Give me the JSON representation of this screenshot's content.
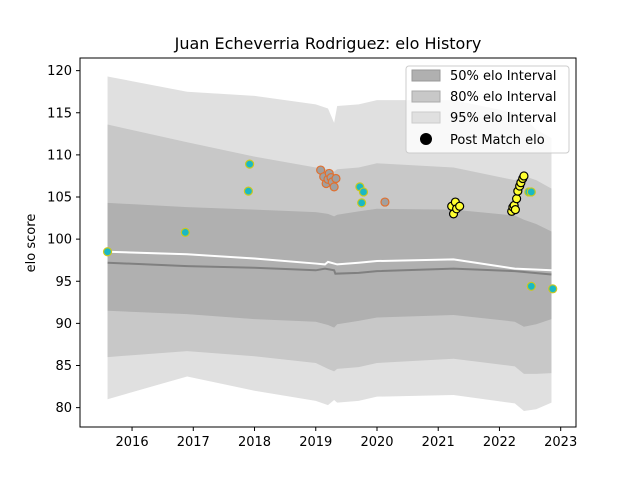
{
  "chart_data": {
    "type": "area",
    "title": "Juan Echeverria Rodriguez: elo History",
    "xlabel": "",
    "ylabel": "elo score",
    "xlim": [
      2015.15,
      2023.25
    ],
    "ylim": [
      77.7,
      121.5
    ],
    "x_ticks": [
      "2016",
      "2017",
      "2018",
      "2019",
      "2020",
      "2021",
      "2022",
      "2023"
    ],
    "y_ticks": [
      "80",
      "85",
      "90",
      "95",
      "100",
      "105",
      "110",
      "115",
      "120"
    ],
    "grid": false,
    "legend_position": "top-right",
    "legend": [
      {
        "label": "50% elo Interval",
        "kind": "band",
        "color": "#b0b0b0"
      },
      {
        "label": "80% elo Interval",
        "kind": "band",
        "color": "#c8c8c8"
      },
      {
        "label": "95% elo Interval",
        "kind": "band",
        "color": "#e0e0e0"
      },
      {
        "label": "Post Match elo",
        "kind": "marker",
        "color": "#000000"
      }
    ],
    "bands": {
      "x": [
        2015.6,
        2016.9,
        2018.0,
        2019.0,
        2019.2,
        2019.3,
        2019.35,
        2019.7,
        2020.0,
        2021.25,
        2022.25,
        2022.4,
        2022.6,
        2022.85
      ],
      "p95_upper": [
        119.3,
        117.5,
        117.0,
        116.0,
        115.5,
        113.8,
        115.8,
        116.0,
        116.5,
        116.5,
        115.0,
        114.5,
        113.0,
        112.0
      ],
      "p80_upper": [
        113.6,
        111.5,
        109.8,
        108.5,
        108.3,
        108.0,
        108.3,
        108.5,
        109.0,
        108.5,
        107.0,
        107.5,
        107.0,
        106.0
      ],
      "p50_upper": [
        104.3,
        103.8,
        103.5,
        103.2,
        103.0,
        102.7,
        102.9,
        103.3,
        103.6,
        103.5,
        102.8,
        102.3,
        101.8,
        100.9
      ],
      "p50_lower": [
        91.5,
        91.1,
        90.5,
        90.2,
        89.8,
        89.5,
        89.9,
        90.3,
        90.7,
        91.0,
        90.2,
        89.6,
        89.9,
        90.5
      ],
      "p80_lower": [
        86.0,
        86.7,
        86.1,
        85.3,
        84.6,
        84.3,
        84.6,
        84.8,
        85.3,
        85.8,
        84.9,
        84.0,
        84.0,
        84.1
      ],
      "p95_lower": [
        81.0,
        83.7,
        82.0,
        80.8,
        80.3,
        80.9,
        80.6,
        80.8,
        81.3,
        81.5,
        80.5,
        79.6,
        79.8,
        80.6
      ]
    },
    "series": [
      {
        "kind": "line",
        "color": "#ffffff",
        "x": [
          2015.6,
          2016.9,
          2018.0,
          2019.0,
          2019.15,
          2019.2,
          2019.3,
          2019.35,
          2019.7,
          2020.0,
          2021.25,
          2022.25,
          2022.85
        ],
        "y": [
          98.5,
          98.2,
          97.7,
          97.1,
          97.0,
          97.3,
          97.1,
          97.0,
          97.2,
          97.4,
          97.6,
          96.5,
          96.3
        ]
      },
      {
        "kind": "line",
        "color": "#808080",
        "x": [
          2015.6,
          2016.9,
          2018.0,
          2019.0,
          2019.15,
          2019.3,
          2019.32,
          2019.7,
          2020.0,
          2021.25,
          2022.25,
          2022.85
        ],
        "y": [
          97.2,
          96.8,
          96.6,
          96.3,
          96.5,
          96.3,
          95.9,
          96.0,
          96.2,
          96.5,
          96.2,
          95.8
        ]
      },
      {
        "kind": "scatter",
        "name": "",
        "fill": "#1ab8c4",
        "edge": "#c8c820",
        "points": [
          [
            2015.6,
            98.5
          ],
          [
            2016.87,
            100.8
          ],
          [
            2017.9,
            105.7
          ],
          [
            2017.92,
            108.9
          ],
          [
            2019.72,
            106.2
          ],
          [
            2019.75,
            104.3
          ],
          [
            2019.78,
            105.6
          ],
          [
            2022.48,
            105.6
          ],
          [
            2022.52,
            105.6
          ],
          [
            2022.52,
            94.4
          ],
          [
            2022.87,
            94.1
          ]
        ]
      },
      {
        "kind": "scatter",
        "name": "",
        "fill": "#a0a0a0",
        "edge": "#e07030",
        "points": [
          [
            2019.08,
            108.2
          ],
          [
            2019.13,
            107.4
          ],
          [
            2019.17,
            106.6
          ],
          [
            2019.2,
            107.1
          ],
          [
            2019.22,
            107.8
          ],
          [
            2019.25,
            107.3
          ],
          [
            2019.27,
            106.8
          ],
          [
            2019.3,
            106.2
          ],
          [
            2019.33,
            107.2
          ],
          [
            2020.13,
            104.4
          ]
        ]
      },
      {
        "kind": "scatter",
        "name": "",
        "fill": "#ffff30",
        "edge": "#000000",
        "points": [
          [
            2021.22,
            103.9
          ],
          [
            2021.25,
            103.0
          ],
          [
            2021.28,
            104.4
          ],
          [
            2021.3,
            103.6
          ],
          [
            2021.35,
            103.9
          ],
          [
            2022.2,
            103.3
          ],
          [
            2022.22,
            103.8
          ],
          [
            2022.24,
            104.0
          ],
          [
            2022.26,
            103.5
          ],
          [
            2022.28,
            104.8
          ],
          [
            2022.3,
            105.7
          ],
          [
            2022.33,
            106.3
          ],
          [
            2022.35,
            106.7
          ],
          [
            2022.38,
            107.2
          ],
          [
            2022.4,
            107.5
          ]
        ]
      }
    ]
  }
}
